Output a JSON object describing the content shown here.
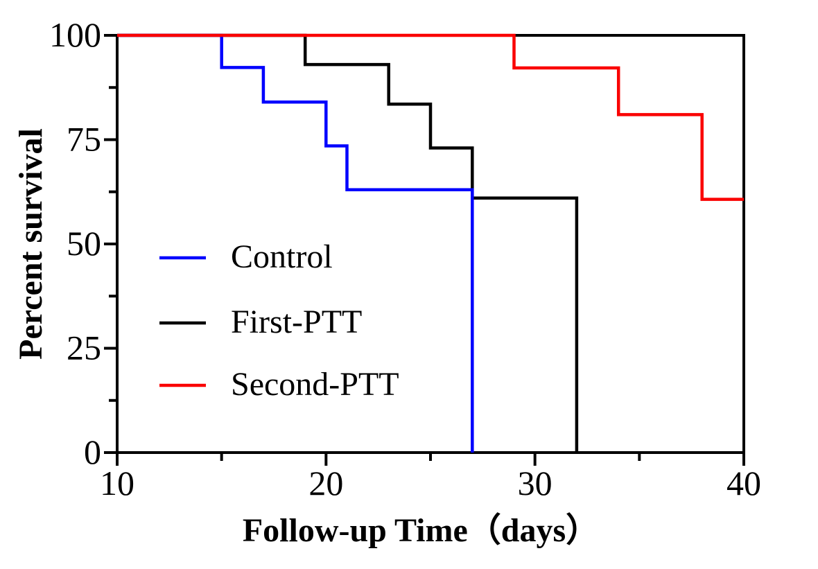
{
  "chart_data": {
    "type": "line",
    "subtype": "kaplan-meier-step-survival",
    "title": "",
    "xlabel": "Follow-up Time（days）",
    "ylabel": "Percent survival",
    "xlim": [
      10,
      40
    ],
    "ylim": [
      0,
      100
    ],
    "x_ticks": [
      {
        "value": 10,
        "label": "10"
      },
      {
        "value": 20,
        "label": "20"
      },
      {
        "value": 30,
        "label": "30"
      },
      {
        "value": 40,
        "label": "40"
      }
    ],
    "x_minor_ticks": [
      15,
      25,
      35
    ],
    "y_ticks": [
      {
        "value": 0,
        "label": "0"
      },
      {
        "value": 25,
        "label": "25"
      },
      {
        "value": 50,
        "label": "50"
      },
      {
        "value": 75,
        "label": "75"
      },
      {
        "value": 100,
        "label": "100"
      }
    ],
    "y_minor_ticks": [
      12.5,
      37.5,
      62.5,
      87.5
    ],
    "grid": false,
    "frame": "full-box-black-ticks-outside",
    "legend_position": "inside-upper-left-stacked",
    "series": [
      {
        "name": "First-PTT",
        "color": "#000000",
        "points": [
          [
            10,
            100
          ],
          [
            19,
            100
          ],
          [
            19,
            93
          ],
          [
            23,
            93
          ],
          [
            23,
            83.5
          ],
          [
            25,
            83.5
          ],
          [
            25,
            73
          ],
          [
            27,
            73
          ],
          [
            27,
            61
          ],
          [
            32,
            61
          ],
          [
            32,
            0
          ]
        ]
      },
      {
        "name": "Control",
        "color": "#0000fe",
        "points": [
          [
            10,
            100
          ],
          [
            15,
            100
          ],
          [
            15,
            92.3
          ],
          [
            17,
            92.3
          ],
          [
            17,
            84
          ],
          [
            20,
            84
          ],
          [
            20,
            73.5
          ],
          [
            21,
            73.5
          ],
          [
            21,
            63
          ],
          [
            27,
            63
          ],
          [
            27,
            0
          ]
        ]
      },
      {
        "name": "Second-PTT",
        "color": "#fa0000",
        "points": [
          [
            10,
            100
          ],
          [
            29,
            100
          ],
          [
            29,
            92.2
          ],
          [
            34,
            92.2
          ],
          [
            34,
            81
          ],
          [
            38,
            81
          ],
          [
            38,
            60.7
          ],
          [
            40,
            60.7
          ]
        ]
      }
    ],
    "legend": [
      {
        "label": "Control",
        "color": "#0000fe"
      },
      {
        "label": "First-PTT",
        "color": "#000000"
      },
      {
        "label": "Second-PTT",
        "color": "#fa0000"
      }
    ]
  },
  "colors": {
    "axis": "#000000",
    "background": "#ffffff",
    "control": "#0000fe",
    "first_ptt": "#000000",
    "second_ptt": "#fa0000"
  }
}
